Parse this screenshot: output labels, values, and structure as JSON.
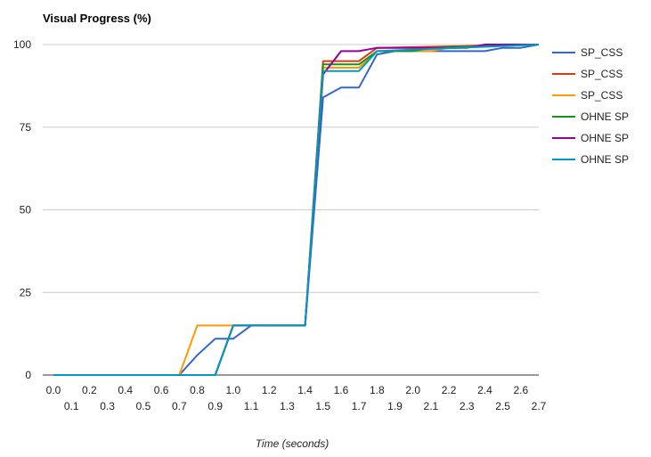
{
  "chart_data": {
    "type": "line",
    "title": "Visual Progress (%)",
    "xlabel": "Time (seconds)",
    "ylabel": "",
    "xlim": [
      0,
      2.7
    ],
    "ylim": [
      0,
      100
    ],
    "yticks": [
      0,
      25,
      50,
      75,
      100
    ],
    "xticks_row1": [
      "0.0",
      "0.2",
      "0.4",
      "0.6",
      "0.8",
      "1.0",
      "1.2",
      "1.4",
      "1.6",
      "1.8",
      "2.0",
      "2.2",
      "2.4",
      "2.6"
    ],
    "xticks_row2": [
      "0.1",
      "0.3",
      "0.5",
      "0.7",
      "0.9",
      "1.1",
      "1.3",
      "1.5",
      "1.7",
      "1.9",
      "2.1",
      "2.3",
      "2.5",
      "2.7"
    ],
    "grid": "horizontal",
    "legend_position": "right",
    "series": [
      {
        "name": "SP_CSS",
        "color": "#3366cc",
        "points": [
          [
            0,
            0
          ],
          [
            0.7,
            0
          ],
          [
            0.8,
            6
          ],
          [
            0.9,
            11
          ],
          [
            1.0,
            11
          ],
          [
            1.1,
            15
          ],
          [
            1.4,
            15
          ],
          [
            1.5,
            84
          ],
          [
            1.6,
            87
          ],
          [
            1.7,
            87
          ],
          [
            1.8,
            97
          ],
          [
            1.9,
            98
          ],
          [
            2.2,
            98
          ],
          [
            2.3,
            98
          ],
          [
            2.4,
            98
          ],
          [
            2.5,
            99
          ],
          [
            2.6,
            99
          ],
          [
            2.7,
            100
          ]
        ]
      },
      {
        "name": "SP_CSS",
        "color": "#dc3912",
        "points": [
          [
            0,
            0
          ],
          [
            0.9,
            0
          ],
          [
            1.0,
            15
          ],
          [
            1.4,
            15
          ],
          [
            1.5,
            95
          ],
          [
            1.6,
            95
          ],
          [
            1.7,
            95
          ],
          [
            1.8,
            99
          ],
          [
            2.7,
            100
          ]
        ]
      },
      {
        "name": "SP_CSS",
        "color": "#ff9900",
        "points": [
          [
            0,
            0
          ],
          [
            0.7,
            0
          ],
          [
            0.8,
            15
          ],
          [
            1.4,
            15
          ],
          [
            1.5,
            93
          ],
          [
            1.6,
            93
          ],
          [
            1.7,
            93
          ],
          [
            1.8,
            98
          ],
          [
            2.1,
            98
          ],
          [
            2.2,
            99
          ],
          [
            2.7,
            100
          ]
        ]
      },
      {
        "name": "OHNE SP",
        "color": "#109618",
        "points": [
          [
            0,
            0
          ],
          [
            0.9,
            0
          ],
          [
            1.0,
            15
          ],
          [
            1.4,
            15
          ],
          [
            1.5,
            94
          ],
          [
            1.6,
            94
          ],
          [
            1.7,
            94
          ],
          [
            1.8,
            98
          ],
          [
            2.0,
            98
          ],
          [
            2.1,
            99
          ],
          [
            2.7,
            100
          ]
        ]
      },
      {
        "name": "OHNE SP",
        "color": "#990099",
        "points": [
          [
            0,
            0
          ],
          [
            0.9,
            0
          ],
          [
            1.0,
            15
          ],
          [
            1.4,
            15
          ],
          [
            1.5,
            91
          ],
          [
            1.6,
            98
          ],
          [
            1.7,
            98
          ],
          [
            1.8,
            99
          ],
          [
            2.3,
            99
          ],
          [
            2.4,
            100
          ],
          [
            2.7,
            100
          ]
        ]
      },
      {
        "name": "OHNE SP",
        "color": "#0099c6",
        "points": [
          [
            0,
            0
          ],
          [
            0.9,
            0
          ],
          [
            1.0,
            15
          ],
          [
            1.4,
            15
          ],
          [
            1.5,
            92
          ],
          [
            1.6,
            92
          ],
          [
            1.7,
            92
          ],
          [
            1.8,
            98
          ],
          [
            2.7,
            100
          ]
        ]
      }
    ]
  }
}
